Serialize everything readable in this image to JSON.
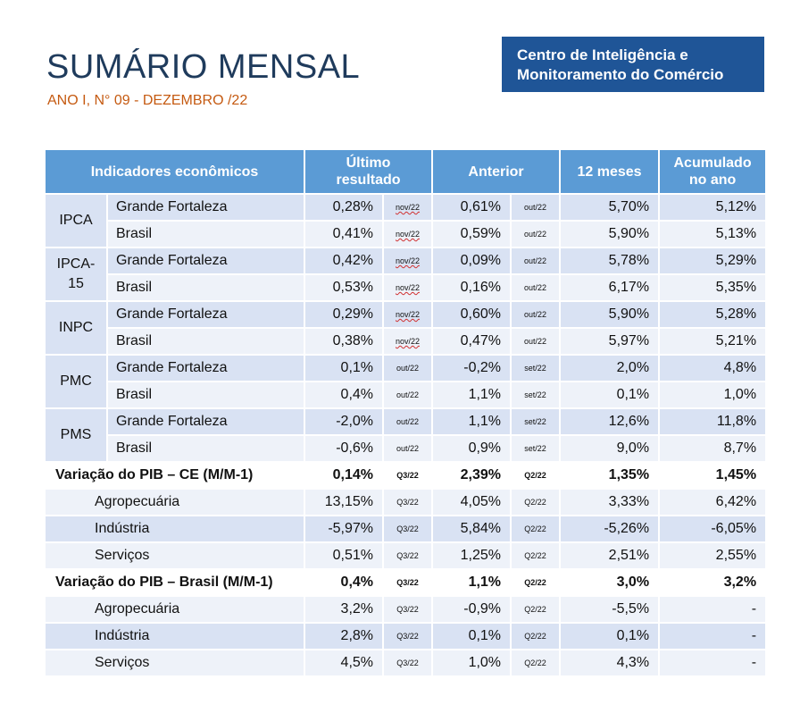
{
  "header": {
    "title": "SUMÁRIO MENSAL",
    "subtitle": "ANO I, N° 09 - DEZEMBRO /22",
    "brand_line1": "Centro de Inteligência e",
    "brand_line2": "Monitoramento do Comércio"
  },
  "table": {
    "columns": {
      "indicators": "Indicadores econômicos",
      "last_line1": "Último",
      "last_line2": "resultado",
      "previous": "Anterior",
      "twelve": "12 meses",
      "acc_line1": "Acumulado",
      "acc_line2": "no ano"
    },
    "groups": [
      {
        "indicator": "IPCA",
        "rows": [
          {
            "region": "Grande Fortaleza",
            "last": "0,28%",
            "last_period": "nov/22",
            "prev": "0,61%",
            "prev_period": "out/22",
            "twelve": "5,70%",
            "acc": "5,12%"
          },
          {
            "region": "Brasil",
            "last": "0,41%",
            "last_period": "nov/22",
            "prev": "0,59%",
            "prev_period": "out/22",
            "twelve": "5,90%",
            "acc": "5,13%"
          }
        ]
      },
      {
        "indicator_line1": "IPCA-",
        "indicator_line2": "15",
        "rows": [
          {
            "region": "Grande Fortaleza",
            "last": "0,42%",
            "last_period": "nov/22",
            "prev": "0,09%",
            "prev_period": "out/22",
            "twelve": "5,78%",
            "acc": "5,29%"
          },
          {
            "region": "Brasil",
            "last": "0,53%",
            "last_period": "nov/22",
            "prev": "0,16%",
            "prev_period": "out/22",
            "twelve": "6,17%",
            "acc": "5,35%"
          }
        ]
      },
      {
        "indicator": "INPC",
        "rows": [
          {
            "region": "Grande Fortaleza",
            "last": "0,29%",
            "last_period": "nov/22",
            "prev": "0,60%",
            "prev_period": "out/22",
            "twelve": "5,90%",
            "acc": "5,28%"
          },
          {
            "region": "Brasil",
            "last": "0,38%",
            "last_period": "nov/22",
            "prev": "0,47%",
            "prev_period": "out/22",
            "twelve": "5,97%",
            "acc": "5,21%"
          }
        ]
      },
      {
        "indicator": "PMC",
        "rows": [
          {
            "region": "Grande Fortaleza",
            "last": "0,1%",
            "last_period": "out/22",
            "prev": "-0,2%",
            "prev_period": "set/22",
            "twelve": "2,0%",
            "acc": "4,8%"
          },
          {
            "region": "Brasil",
            "last": "0,4%",
            "last_period": "out/22",
            "prev": "1,1%",
            "prev_period": "set/22",
            "twelve": "0,1%",
            "acc": "1,0%"
          }
        ]
      },
      {
        "indicator": "PMS",
        "rows": [
          {
            "region": "Grande Fortaleza",
            "last": "-2,0%",
            "last_period": "out/22",
            "prev": "1,1%",
            "prev_period": "set/22",
            "twelve": "12,6%",
            "acc": "11,8%"
          },
          {
            "region": "Brasil",
            "last": "-0,6%",
            "last_period": "out/22",
            "prev": "0,9%",
            "prev_period": "set/22",
            "twelve": "9,0%",
            "acc": "8,7%"
          }
        ]
      }
    ],
    "pib_ce": {
      "label": "Variação do PIB – CE (M/M-1)",
      "last": "0,14%",
      "last_period": "Q3/22",
      "prev": "2,39%",
      "prev_period": "Q2/22",
      "twelve": "1,35%",
      "acc": "1,45%",
      "rows": [
        {
          "label": "Agropecuária",
          "last": "13,15%",
          "last_period": "Q3/22",
          "prev": "4,05%",
          "prev_period": "Q2/22",
          "twelve": "3,33%",
          "acc": "6,42%"
        },
        {
          "label": "Indústria",
          "last": "-5,97%",
          "last_period": "Q3/22",
          "prev": "5,84%",
          "prev_period": "Q2/22",
          "twelve": "-5,26%",
          "acc": "-6,05%"
        },
        {
          "label": "Serviços",
          "last": "0,51%",
          "last_period": "Q3/22",
          "prev": "1,25%",
          "prev_period": "Q2/22",
          "twelve": "2,51%",
          "acc": "2,55%"
        }
      ]
    },
    "pib_br": {
      "label": "Variação do PIB – Brasil (M/M-1)",
      "last": "0,4%",
      "last_period": "Q3/22",
      "prev": "1,1%",
      "prev_period": "Q2/22",
      "twelve": "3,0%",
      "acc": "3,2%",
      "rows": [
        {
          "label": "Agropecuária",
          "last": "3,2%",
          "last_period": "Q3/22",
          "prev": "-0,9%",
          "prev_period": "Q2/22",
          "twelve": "-5,5%",
          "acc": "-"
        },
        {
          "label": "Indústria",
          "last": "2,8%",
          "last_period": "Q3/22",
          "prev": "0,1%",
          "prev_period": "Q2/22",
          "twelve": "0,1%",
          "acc": "-"
        },
        {
          "label": "Serviços",
          "last": "4,5%",
          "last_period": "Q3/22",
          "prev": "1,0%",
          "prev_period": "Q2/22",
          "twelve": "4,3%",
          "acc": "-"
        }
      ]
    }
  }
}
